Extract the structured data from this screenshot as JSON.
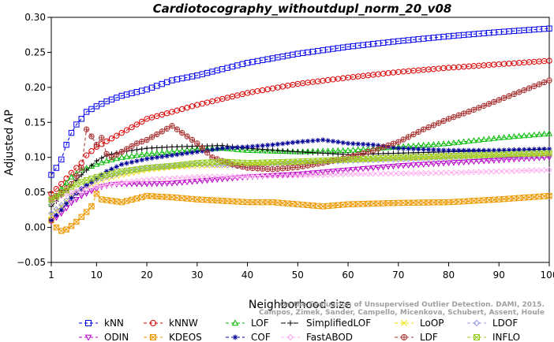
{
  "chart_data": {
    "type": "line",
    "title": "Cardiotocography_withoutdupl_norm_20_v08",
    "xlabel": "Neighborhood size",
    "ylabel": "Adjusted AP",
    "xlim": [
      1,
      100
    ],
    "ylim": [
      -0.05,
      0.3
    ],
    "xticks": [
      1,
      10,
      20,
      30,
      40,
      50,
      60,
      70,
      80,
      90,
      100
    ],
    "yticks": [
      -0.05,
      0.0,
      0.05,
      0.1,
      0.15,
      0.2,
      0.25,
      0.3
    ],
    "ytick_labels": [
      "−0.05",
      "0.00",
      "0.05",
      "0.10",
      "0.15",
      "0.20",
      "0.25",
      "0.30"
    ],
    "grid": false,
    "legend_position": "bottom",
    "watermark": {
      "line1": "Campos, Zimek, Sander, Campello, Micenkova, Schubert, Assent, Houle",
      "line2": "On the Evaluation of Unsupervised Outlier Detection. DAMI, 2015."
    },
    "series": [
      {
        "name": "kNN",
        "color": "#0000ee",
        "marker": "square",
        "dash": "4,3",
        "points": [
          [
            1,
            0.075
          ],
          [
            2,
            0.085
          ],
          [
            3,
            0.097
          ],
          [
            4,
            0.118
          ],
          [
            5,
            0.135
          ],
          [
            6,
            0.147
          ],
          [
            7,
            0.155
          ],
          [
            8,
            0.165
          ],
          [
            10,
            0.173
          ],
          [
            12,
            0.18
          ],
          [
            15,
            0.188
          ],
          [
            20,
            0.197
          ],
          [
            25,
            0.21
          ],
          [
            30,
            0.217
          ],
          [
            40,
            0.235
          ],
          [
            50,
            0.248
          ],
          [
            60,
            0.258
          ],
          [
            70,
            0.266
          ],
          [
            80,
            0.273
          ],
          [
            90,
            0.279
          ],
          [
            100,
            0.284
          ]
        ]
      },
      {
        "name": "kNNW",
        "color": "#dd0000",
        "marker": "circle",
        "dash": "4,3",
        "points": [
          [
            1,
            0.048
          ],
          [
            3,
            0.062
          ],
          [
            5,
            0.078
          ],
          [
            7,
            0.092
          ],
          [
            8,
            0.103
          ],
          [
            10,
            0.115
          ],
          [
            12,
            0.123
          ],
          [
            15,
            0.135
          ],
          [
            20,
            0.155
          ],
          [
            25,
            0.165
          ],
          [
            30,
            0.175
          ],
          [
            40,
            0.192
          ],
          [
            50,
            0.205
          ],
          [
            60,
            0.214
          ],
          [
            70,
            0.222
          ],
          [
            80,
            0.228
          ],
          [
            90,
            0.233
          ],
          [
            100,
            0.238
          ]
        ]
      },
      {
        "name": "LOF",
        "color": "#00bb00",
        "marker": "triangle-up",
        "dash": "4,3",
        "points": [
          [
            1,
            0.035
          ],
          [
            3,
            0.055
          ],
          [
            5,
            0.072
          ],
          [
            7,
            0.082
          ],
          [
            10,
            0.09
          ],
          [
            12,
            0.095
          ],
          [
            15,
            0.1
          ],
          [
            20,
            0.105
          ],
          [
            25,
            0.108
          ],
          [
            30,
            0.112
          ],
          [
            35,
            0.113
          ],
          [
            40,
            0.11
          ],
          [
            50,
            0.108
          ],
          [
            60,
            0.11
          ],
          [
            70,
            0.115
          ],
          [
            80,
            0.12
          ],
          [
            90,
            0.128
          ],
          [
            100,
            0.134
          ]
        ]
      },
      {
        "name": "SimplifiedLOF",
        "color": "#000000",
        "marker": "plus",
        "dash": "6,2",
        "points": [
          [
            1,
            0.03
          ],
          [
            3,
            0.045
          ],
          [
            5,
            0.06
          ],
          [
            7,
            0.075
          ],
          [
            10,
            0.095
          ],
          [
            12,
            0.103
          ],
          [
            15,
            0.108
          ],
          [
            20,
            0.113
          ],
          [
            25,
            0.115
          ],
          [
            30,
            0.116
          ],
          [
            35,
            0.117
          ],
          [
            40,
            0.113
          ],
          [
            50,
            0.108
          ],
          [
            60,
            0.104
          ],
          [
            70,
            0.106
          ],
          [
            80,
            0.108
          ],
          [
            90,
            0.11
          ],
          [
            100,
            0.112
          ]
        ]
      },
      {
        "name": "LoOP",
        "color": "#eedd00",
        "marker": "x",
        "dash": "4,3",
        "points": [
          [
            1,
            0.018
          ],
          [
            3,
            0.03
          ],
          [
            5,
            0.045
          ],
          [
            7,
            0.055
          ],
          [
            10,
            0.065
          ],
          [
            12,
            0.07
          ],
          [
            15,
            0.075
          ],
          [
            20,
            0.082
          ],
          [
            25,
            0.086
          ],
          [
            30,
            0.088
          ],
          [
            40,
            0.09
          ],
          [
            50,
            0.093
          ],
          [
            60,
            0.096
          ],
          [
            70,
            0.098
          ],
          [
            80,
            0.1
          ],
          [
            90,
            0.102
          ],
          [
            100,
            0.104
          ]
        ]
      },
      {
        "name": "LDOF",
        "color": "#9999ee",
        "marker": "diamond",
        "dash": "4,3",
        "points": [
          [
            1,
            0.02
          ],
          [
            3,
            0.032
          ],
          [
            5,
            0.045
          ],
          [
            8,
            0.06
          ],
          [
            10,
            0.068
          ],
          [
            15,
            0.078
          ],
          [
            20,
            0.085
          ],
          [
            25,
            0.088
          ],
          [
            30,
            0.09
          ],
          [
            40,
            0.088
          ],
          [
            50,
            0.092
          ],
          [
            60,
            0.095
          ],
          [
            70,
            0.097
          ],
          [
            80,
            0.099
          ],
          [
            90,
            0.101
          ],
          [
            100,
            0.103
          ]
        ]
      },
      {
        "name": "ODIN",
        "color": "#bb00cc",
        "marker": "triangle-down",
        "dash": "4,3",
        "points": [
          [
            1,
            0.008
          ],
          [
            3,
            0.02
          ],
          [
            5,
            0.035
          ],
          [
            7,
            0.045
          ],
          [
            9,
            0.052
          ],
          [
            11,
            0.058
          ],
          [
            13,
            0.061
          ],
          [
            15,
            0.062
          ],
          [
            20,
            0.062
          ],
          [
            25,
            0.063
          ],
          [
            30,
            0.066
          ],
          [
            40,
            0.072
          ],
          [
            50,
            0.076
          ],
          [
            60,
            0.082
          ],
          [
            70,
            0.088
          ],
          [
            80,
            0.092
          ],
          [
            90,
            0.096
          ],
          [
            100,
            0.1
          ]
        ]
      },
      {
        "name": "KDEOS",
        "color": "#ee9900",
        "marker": "square-x",
        "dash": "4,3",
        "points": [
          [
            1,
            0.01
          ],
          [
            2,
            0.0
          ],
          [
            3,
            -0.005
          ],
          [
            4,
            -0.003
          ],
          [
            5,
            0.002
          ],
          [
            6,
            0.008
          ],
          [
            7,
            0.015
          ],
          [
            8,
            0.022
          ],
          [
            9,
            0.03
          ],
          [
            10,
            0.048
          ],
          [
            11,
            0.04
          ],
          [
            13,
            0.038
          ],
          [
            15,
            0.036
          ],
          [
            20,
            0.045
          ],
          [
            25,
            0.043
          ],
          [
            30,
            0.04
          ],
          [
            35,
            0.038
          ],
          [
            40,
            0.036
          ],
          [
            45,
            0.036
          ],
          [
            50,
            0.033
          ],
          [
            55,
            0.03
          ],
          [
            60,
            0.033
          ],
          [
            70,
            0.035
          ],
          [
            80,
            0.036
          ],
          [
            90,
            0.04
          ],
          [
            100,
            0.045
          ]
        ]
      },
      {
        "name": "COF",
        "color": "#000099",
        "marker": "asterisk",
        "dash": "4,3",
        "points": [
          [
            1,
            0.01
          ],
          [
            3,
            0.025
          ],
          [
            5,
            0.042
          ],
          [
            7,
            0.055
          ],
          [
            10,
            0.07
          ],
          [
            12,
            0.08
          ],
          [
            15,
            0.09
          ],
          [
            20,
            0.098
          ],
          [
            25,
            0.103
          ],
          [
            30,
            0.108
          ],
          [
            35,
            0.113
          ],
          [
            40,
            0.115
          ],
          [
            45,
            0.118
          ],
          [
            50,
            0.122
          ],
          [
            55,
            0.125
          ],
          [
            60,
            0.12
          ],
          [
            65,
            0.118
          ],
          [
            70,
            0.113
          ],
          [
            80,
            0.11
          ],
          [
            90,
            0.11
          ],
          [
            100,
            0.112
          ]
        ]
      },
      {
        "name": "FastABOD",
        "color": "#ffaaee",
        "marker": "diamond",
        "dash": "4,3",
        "points": [
          [
            1,
            0.035
          ],
          [
            3,
            0.045
          ],
          [
            5,
            0.05
          ],
          [
            8,
            0.055
          ],
          [
            10,
            0.058
          ],
          [
            15,
            0.064
          ],
          [
            20,
            0.068
          ],
          [
            25,
            0.07
          ],
          [
            30,
            0.072
          ],
          [
            40,
            0.073
          ],
          [
            50,
            0.074
          ],
          [
            60,
            0.076
          ],
          [
            70,
            0.077
          ],
          [
            80,
            0.078
          ],
          [
            90,
            0.08
          ],
          [
            100,
            0.082
          ]
        ]
      },
      {
        "name": "LDF",
        "color": "#aa3333",
        "marker": "circle-plus",
        "dash": "4,3",
        "points": [
          [
            1,
            0.04
          ],
          [
            3,
            0.05
          ],
          [
            5,
            0.062
          ],
          [
            7,
            0.085
          ],
          [
            8,
            0.14
          ],
          [
            9,
            0.13
          ],
          [
            10,
            0.118
          ],
          [
            11,
            0.128
          ],
          [
            12,
            0.105
          ],
          [
            13,
            0.1
          ],
          [
            15,
            0.108
          ],
          [
            18,
            0.12
          ],
          [
            20,
            0.125
          ],
          [
            22,
            0.133
          ],
          [
            25,
            0.145
          ],
          [
            28,
            0.13
          ],
          [
            30,
            0.12
          ],
          [
            33,
            0.1
          ],
          [
            35,
            0.095
          ],
          [
            38,
            0.088
          ],
          [
            40,
            0.085
          ],
          [
            45,
            0.083
          ],
          [
            50,
            0.086
          ],
          [
            55,
            0.092
          ],
          [
            60,
            0.1
          ],
          [
            65,
            0.11
          ],
          [
            70,
            0.122
          ],
          [
            75,
            0.14
          ],
          [
            80,
            0.155
          ],
          [
            85,
            0.168
          ],
          [
            90,
            0.182
          ],
          [
            95,
            0.196
          ],
          [
            100,
            0.21
          ]
        ]
      },
      {
        "name": "INFLO",
        "color": "#99cc22",
        "marker": "square-x",
        "dash": "4,3",
        "points": [
          [
            1,
            0.04
          ],
          [
            3,
            0.048
          ],
          [
            5,
            0.058
          ],
          [
            7,
            0.065
          ],
          [
            10,
            0.072
          ],
          [
            15,
            0.08
          ],
          [
            20,
            0.085
          ],
          [
            25,
            0.088
          ],
          [
            30,
            0.092
          ],
          [
            35,
            0.094
          ],
          [
            40,
            0.092
          ],
          [
            50,
            0.094
          ],
          [
            60,
            0.097
          ],
          [
            70,
            0.1
          ],
          [
            80,
            0.102
          ],
          [
            90,
            0.104
          ],
          [
            100,
            0.106
          ]
        ]
      }
    ],
    "legend_order": [
      [
        "kNN",
        "kNNW",
        "LOF",
        "SimplifiedLOF",
        "LoOP",
        "LDOF"
      ],
      [
        "ODIN",
        "KDEOS",
        "COF",
        "FastABOD",
        "LDF",
        "INFLO"
      ]
    ]
  }
}
